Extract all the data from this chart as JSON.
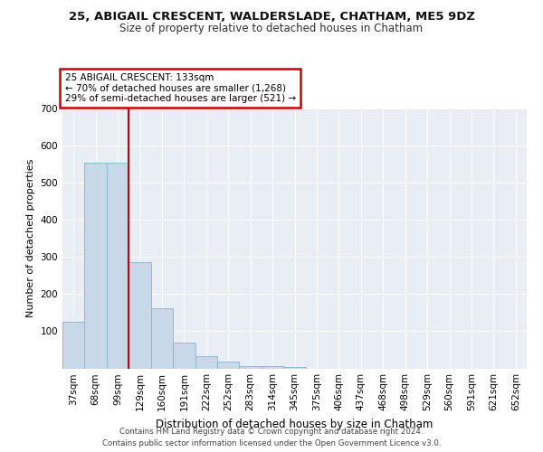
{
  "title1": "25, ABIGAIL CRESCENT, WALDERSLADE, CHATHAM, ME5 9DZ",
  "title2": "Size of property relative to detached houses in Chatham",
  "xlabel": "Distribution of detached houses by size in Chatham",
  "ylabel": "Number of detached properties",
  "footer1": "Contains HM Land Registry data © Crown copyright and database right 2024.",
  "footer2": "Contains public sector information licensed under the Open Government Licence v3.0.",
  "categories": [
    "37sqm",
    "68sqm",
    "99sqm",
    "129sqm",
    "160sqm",
    "191sqm",
    "222sqm",
    "252sqm",
    "283sqm",
    "314sqm",
    "345sqm",
    "375sqm",
    "406sqm",
    "437sqm",
    "468sqm",
    "498sqm",
    "529sqm",
    "560sqm",
    "591sqm",
    "621sqm",
    "652sqm"
  ],
  "values": [
    125,
    555,
    555,
    285,
    163,
    70,
    32,
    18,
    7,
    7,
    3,
    0,
    0,
    0,
    0,
    0,
    0,
    0,
    0,
    0,
    0
  ],
  "bar_color": "#c8d8e8",
  "bar_edge_color": "#8ab0cc",
  "annotation_title": "25 ABIGAIL CRESCENT: 133sqm",
  "annotation_line1": "← 70% of detached houses are smaller (1,268)",
  "annotation_line2": "29% of semi-detached houses are larger (521) →",
  "vline_x": 3.0,
  "vline_color": "#cc0000",
  "ylim": [
    0,
    700
  ],
  "yticks": [
    0,
    100,
    200,
    300,
    400,
    500,
    600,
    700
  ],
  "background_color": "#e8eef4",
  "grid_color": "#ffffff",
  "annotation_box_color": "#ffffff",
  "annotation_box_edge": "#cc0000",
  "title1_fontsize": 9.5,
  "title2_fontsize": 8.5,
  "xlabel_fontsize": 8.5,
  "ylabel_fontsize": 8.0,
  "tick_fontsize": 7.5,
  "annot_fontsize": 7.5
}
